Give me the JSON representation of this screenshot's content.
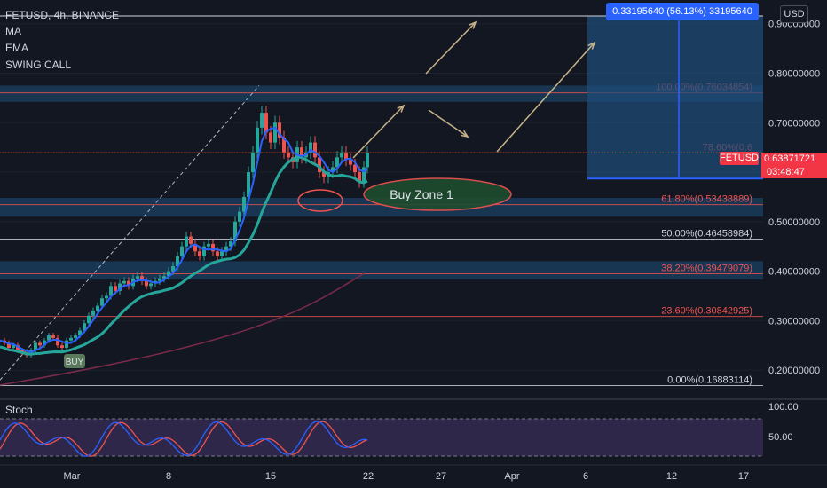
{
  "header": {
    "symbol_line": "FETUSD, 4h, BINANCE",
    "indicators": [
      "MA",
      "EMA",
      "SWING CALL"
    ],
    "stoch_label": "Stoch"
  },
  "currency_button": "USD",
  "measure_label": "0.33195640 (56.13%) 33195640",
  "current_price": {
    "ticker": "FETUSD",
    "value": "0.63871721",
    "countdown": "03:48:47"
  },
  "annotations": {
    "buy_zone": "Buy Zone 1",
    "buy_marker": "BUY"
  },
  "colors": {
    "background": "#131722",
    "up_candle": "#26a69a",
    "down_candle": "#ef5350",
    "ema_line": "#26a69a",
    "ma_line": "#2962ff",
    "long_ma": "#7b2a4a",
    "fib_red": "#ef5350",
    "zone_fill": "#1e4f7a",
    "stoch_k": "#2962ff",
    "stoch_d": "#ef5350",
    "stoch_band": "#7e57c2",
    "measure_blue": "#2962ff"
  },
  "chart_data": {
    "type": "candlestick",
    "symbol": "FETUSD",
    "interval": "4h",
    "exchange": "BINANCE",
    "x_tick_labels": [
      "Mar",
      "8",
      "15",
      "22",
      "27",
      "Apr",
      "6",
      "12",
      "17"
    ],
    "y_tick_labels": [
      "0.90000000",
      "0.80000000",
      "0.70000000",
      "0.60000000",
      "0.50000000",
      "0.40000000",
      "0.30000000",
      "0.20000000"
    ],
    "y_ticks": [
      0.9,
      0.8,
      0.7,
      0.6,
      0.5,
      0.4,
      0.3,
      0.2
    ],
    "ylim": [
      0.15,
      0.93
    ],
    "fib_levels": [
      {
        "label": "100.00%(0.76034854)",
        "value": 0.76034854
      },
      {
        "label": "78.60%(0.6",
        "value": 0.639
      },
      {
        "label": "61.80%(0.53438889)",
        "value": 0.53438889
      },
      {
        "label": "50.00%(0.46458984)",
        "value": 0.46458984
      },
      {
        "label": "38.20%(0.39479079)",
        "value": 0.39479079
      },
      {
        "label": "23.60%(0.30842925)",
        "value": 0.30842925
      },
      {
        "label": "0.00%(0.16883114)",
        "value": 0.16883114
      }
    ],
    "price_path": [
      [
        0,
        0.26
      ],
      [
        5,
        0.255
      ],
      [
        10,
        0.245
      ],
      [
        15,
        0.25
      ],
      [
        20,
        0.24
      ],
      [
        25,
        0.235
      ],
      [
        30,
        0.23
      ],
      [
        35,
        0.24
      ],
      [
        40,
        0.255
      ],
      [
        45,
        0.25
      ],
      [
        50,
        0.26
      ],
      [
        55,
        0.27
      ],
      [
        60,
        0.265
      ],
      [
        65,
        0.25
      ],
      [
        70,
        0.245
      ],
      [
        75,
        0.26
      ],
      [
        80,
        0.265
      ],
      [
        85,
        0.27
      ],
      [
        90,
        0.28
      ],
      [
        95,
        0.295
      ],
      [
        100,
        0.31
      ],
      [
        105,
        0.32
      ],
      [
        110,
        0.33
      ],
      [
        115,
        0.345
      ],
      [
        120,
        0.35
      ],
      [
        125,
        0.37
      ],
      [
        130,
        0.36
      ],
      [
        135,
        0.375
      ],
      [
        140,
        0.38
      ],
      [
        145,
        0.37
      ],
      [
        150,
        0.385
      ],
      [
        155,
        0.39
      ],
      [
        160,
        0.38
      ],
      [
        165,
        0.37
      ],
      [
        170,
        0.375
      ],
      [
        175,
        0.38
      ],
      [
        180,
        0.385
      ],
      [
        185,
        0.39
      ],
      [
        190,
        0.4
      ],
      [
        195,
        0.41
      ],
      [
        200,
        0.43
      ],
      [
        205,
        0.45
      ],
      [
        210,
        0.47
      ],
      [
        215,
        0.455
      ],
      [
        220,
        0.44
      ],
      [
        225,
        0.43
      ],
      [
        230,
        0.45
      ],
      [
        235,
        0.455
      ],
      [
        240,
        0.44
      ],
      [
        245,
        0.43
      ],
      [
        250,
        0.44
      ],
      [
        255,
        0.45
      ],
      [
        260,
        0.46
      ],
      [
        265,
        0.5
      ],
      [
        270,
        0.52
      ],
      [
        275,
        0.55
      ],
      [
        280,
        0.6
      ],
      [
        285,
        0.64
      ],
      [
        290,
        0.69
      ],
      [
        295,
        0.72
      ],
      [
        300,
        0.68
      ],
      [
        305,
        0.66
      ],
      [
        310,
        0.7
      ],
      [
        315,
        0.67
      ],
      [
        320,
        0.64
      ],
      [
        325,
        0.63
      ],
      [
        330,
        0.62
      ],
      [
        335,
        0.65
      ],
      [
        340,
        0.63
      ],
      [
        345,
        0.64
      ],
      [
        350,
        0.66
      ],
      [
        355,
        0.63
      ],
      [
        360,
        0.6
      ],
      [
        365,
        0.59
      ],
      [
        370,
        0.6
      ],
      [
        375,
        0.61
      ],
      [
        380,
        0.63
      ],
      [
        385,
        0.64
      ],
      [
        390,
        0.625
      ],
      [
        395,
        0.615
      ],
      [
        400,
        0.6
      ],
      [
        405,
        0.58
      ],
      [
        410,
        0.61
      ],
      [
        414,
        0.639
      ]
    ],
    "stoch_levels": {
      "labels": [
        "100.00",
        "50.00"
      ],
      "values": [
        100,
        50
      ]
    }
  }
}
